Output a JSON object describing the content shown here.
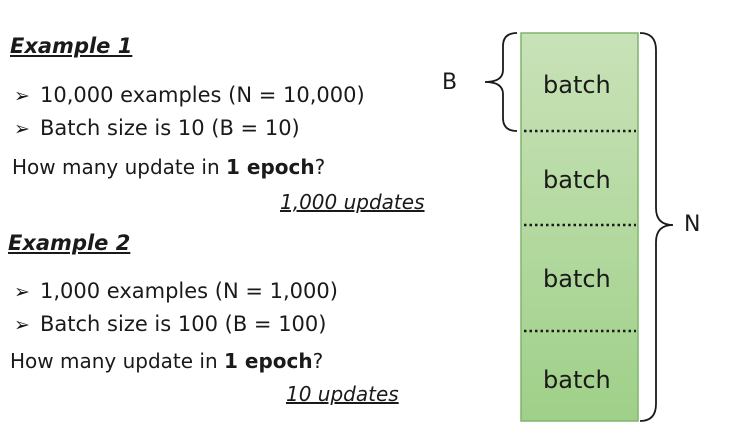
{
  "example1": {
    "heading": "Example 1",
    "bullets": [
      "10,000 examples (N = 10,000)",
      "Batch size is 10 (B = 10)"
    ],
    "question_prefix": "How many update in ",
    "question_bold": "1 epoch",
    "question_suffix": "?",
    "answer": "1,000 updates"
  },
  "example2": {
    "heading": "Example 2",
    "bullets": [
      "1,000 examples (N = 1,000)",
      "Batch size is 100 (B = 100)"
    ],
    "question_prefix": "How many update in ",
    "question_bold": "1 epoch",
    "question_suffix": "?",
    "answer": "10 updates"
  },
  "bar": {
    "batches": [
      "batch",
      "batch",
      "batch",
      "batch"
    ],
    "b_label": "B",
    "n_label": "N",
    "fill_top": "#c9e2b8",
    "fill_bottom": "#9fd089",
    "border": "#7fb56a"
  },
  "bullet_glyph": "➢"
}
